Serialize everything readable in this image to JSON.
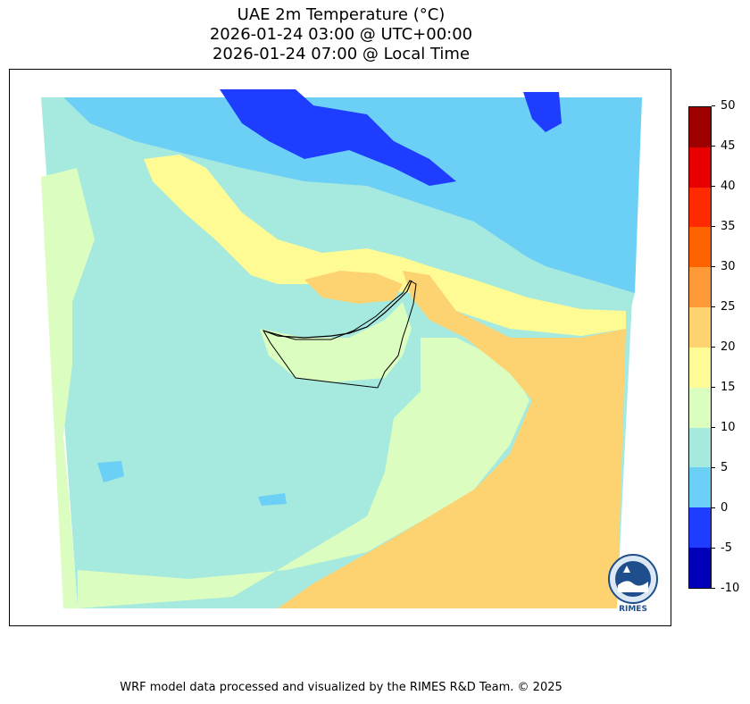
{
  "title": {
    "line1": "UAE 2m Temperature (°C)",
    "line2": "2026-01-24 03:00 @ UTC+00:00",
    "line3": "2026-01-24 07:00 @ Local Time"
  },
  "map": {
    "variable": "2m Temperature",
    "unit": "°C",
    "region": "UAE",
    "colors": {
      "deep_blue": "#0000b8",
      "blue": "#1f3dff",
      "light_blue": "#6ccff6",
      "aqua": "#a6e9de",
      "pale_green": "#dbfdc0",
      "pale_yellow": "#fefb95",
      "light_orange": "#fdd372",
      "border_line": "#000000"
    }
  },
  "colorbar": {
    "ticks": [
      "50",
      "45",
      "40",
      "35",
      "30",
      "25",
      "20",
      "15",
      "10",
      "5",
      "0",
      "-5",
      "-10"
    ],
    "colors_top_to_bottom": [
      "#9e0000",
      "#e60000",
      "#ff2a00",
      "#ff6200",
      "#ff9a38",
      "#fdd372",
      "#fefb95",
      "#dbfdc0",
      "#a6e9de",
      "#6ccff6",
      "#1f3dff",
      "#0000b8"
    ]
  },
  "logo": {
    "text": "RIMES",
    "icon": "rimes-globe-logo"
  },
  "footer": {
    "credit": "WRF model data processed and visualized by the RIMES R&D Team. © 2025"
  }
}
